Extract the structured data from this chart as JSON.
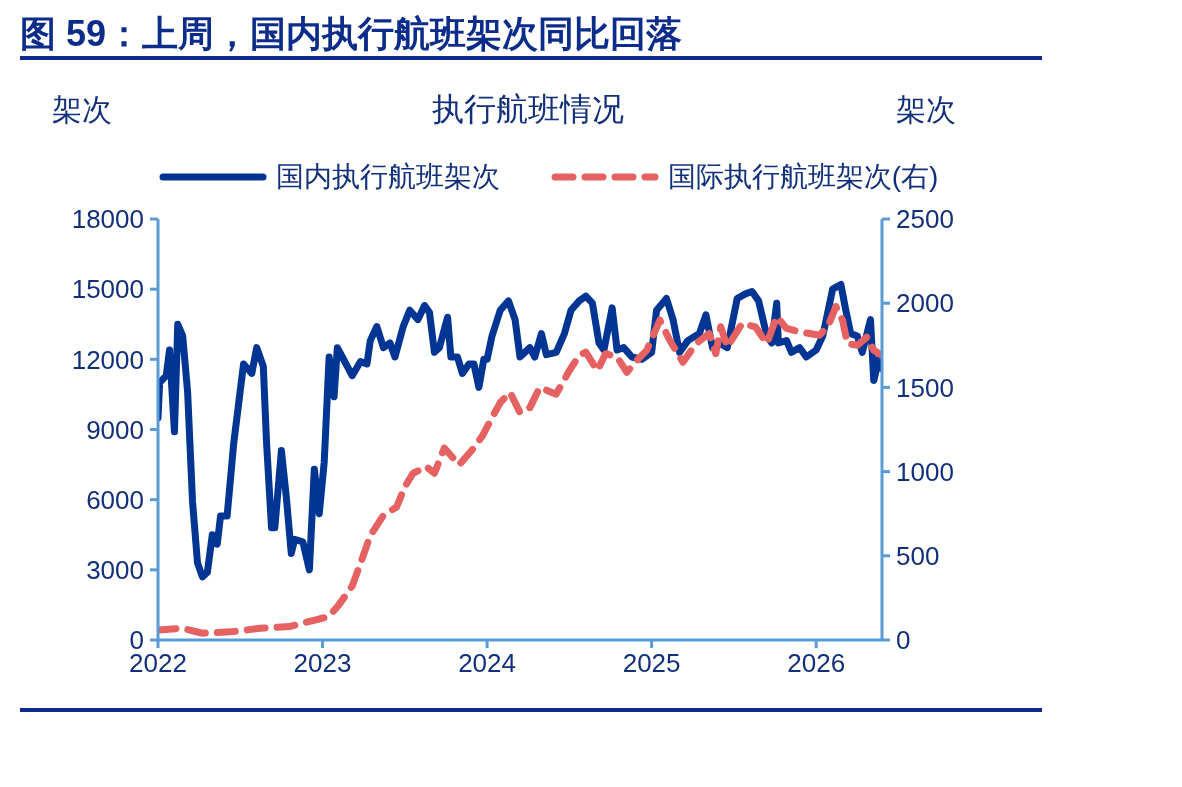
{
  "chart_data": {
    "type": "line",
    "title": "图 59：上周，国内执行航班架次同比回落",
    "subtitle": "执行航班情况",
    "ylabel": "架次",
    "y2label": "架次",
    "xlim": [
      2022,
      2026.4
    ],
    "xticks": [
      2022,
      2023,
      2024,
      2025,
      2026
    ],
    "ylim": [
      0,
      18000
    ],
    "yticks": [
      0,
      3000,
      6000,
      9000,
      12000,
      15000,
      18000
    ],
    "y2lim": [
      0,
      2500
    ],
    "y2ticks": [
      0,
      500,
      1000,
      1500,
      2000,
      2500
    ],
    "legend": "top",
    "marker": "none",
    "series": [
      {
        "name": "国内执行航班架次",
        "color": "#003594",
        "line_style": "solid",
        "x": [
          2022.0,
          2022.01,
          2022.05,
          2022.07,
          2022.1,
          2022.12,
          2022.15,
          2022.18,
          2022.21,
          2022.24,
          2022.27,
          2022.3,
          2022.33,
          2022.36,
          2022.38,
          2022.42,
          2022.46,
          2022.49,
          2022.52,
          2022.57,
          2022.6,
          2022.64,
          2022.66,
          2022.69,
          2022.71,
          2022.75,
          2022.78,
          2022.81,
          2022.83,
          2022.88,
          2022.92,
          2022.95,
          2022.98,
          2023.01,
          2023.04,
          2023.07,
          2023.09,
          2023.12,
          2023.18,
          2023.23,
          2023.27,
          2023.29,
          2023.33,
          2023.37,
          2023.41,
          2023.44,
          2023.49,
          2023.53,
          2023.58,
          2023.62,
          2023.65,
          2023.68,
          2023.71,
          2023.76,
          2023.78,
          2023.82,
          2023.85,
          2023.89,
          2023.92,
          2023.95,
          2023.98,
          2024.0,
          2024.03,
          2024.08,
          2024.13,
          2024.17,
          2024.2,
          2024.26,
          2024.29,
          2024.33,
          2024.36,
          2024.42,
          2024.47,
          2024.51,
          2024.56,
          2024.6,
          2024.64,
          2024.68,
          2024.71,
          2024.76,
          2024.79,
          2024.83,
          2024.88,
          2024.94,
          2025.0,
          2025.03,
          2025.09,
          2025.13,
          2025.17,
          2025.22,
          2025.29,
          2025.33,
          2025.37,
          2025.41,
          2025.46,
          2025.52,
          2025.57,
          2025.61,
          2025.65,
          2025.7,
          2025.73,
          2025.76,
          2025.77,
          2025.82,
          2025.85,
          2025.9,
          2025.94,
          2026.0,
          2026.04,
          2026.1,
          2026.15,
          2026.18,
          2026.21,
          2026.25,
          2026.28,
          2026.33,
          2026.35,
          2026.38,
          2026.4
        ],
        "values": [
          9500,
          11000,
          11300,
          12400,
          8900,
          13500,
          13000,
          10600,
          5900,
          3300,
          2700,
          2900,
          4500,
          4100,
          5300,
          5300,
          8400,
          10100,
          11800,
          11400,
          12500,
          11700,
          8400,
          4800,
          4800,
          8100,
          6100,
          3700,
          4300,
          4200,
          3000,
          7300,
          5400,
          7600,
          12100,
          10400,
          12500,
          12100,
          11300,
          11900,
          11800,
          12800,
          13400,
          12500,
          12700,
          12100,
          13400,
          14100,
          13700,
          14300,
          14000,
          12300,
          12500,
          13800,
          12100,
          12100,
          11400,
          11800,
          11800,
          10800,
          12000,
          12000,
          13000,
          14100,
          14500,
          13700,
          12100,
          12500,
          12100,
          13100,
          12200,
          12300,
          13100,
          14100,
          14500,
          14700,
          14400,
          12700,
          12400,
          14200,
          12400,
          12500,
          12100,
          12000,
          12300,
          14100,
          14600,
          13700,
          12300,
          12800,
          13100,
          13900,
          12500,
          12700,
          12500,
          14600,
          14800,
          14900,
          14500,
          13000,
          12700,
          14400,
          12700,
          12800,
          12300,
          12500,
          12100,
          12400,
          13000,
          15000,
          15200,
          14100,
          13100,
          13000,
          12300,
          13700,
          11100,
          12000,
          11600
        ]
      },
      {
        "name": "国际执行航班架次(右)",
        "color": "#e66161",
        "line_style": "dashed",
        "axis": "y2",
        "x": [
          2022.0,
          2022.15,
          2022.27,
          2022.46,
          2022.62,
          2022.8,
          2022.96,
          2023.04,
          2023.1,
          2023.18,
          2023.24,
          2023.29,
          2023.37,
          2023.45,
          2023.5,
          2023.55,
          2023.63,
          2023.68,
          2023.74,
          2023.83,
          2023.91,
          2023.97,
          2024.03,
          2024.08,
          2024.14,
          2024.2,
          2024.26,
          2024.32,
          2024.42,
          2024.5,
          2024.56,
          2024.6,
          2024.67,
          2024.72,
          2024.79,
          2024.85,
          2024.91,
          2024.97,
          2025.05,
          2025.11,
          2025.19,
          2025.27,
          2025.35,
          2025.39,
          2025.42,
          2025.46,
          2025.55,
          2025.63,
          2025.7,
          2025.76,
          2025.82,
          2025.9,
          2026.02,
          2026.07,
          2026.12,
          2026.16,
          2026.19,
          2026.25,
          2026.31,
          2026.35,
          2026.4
        ],
        "values": [
          60,
          70,
          40,
          50,
          70,
          80,
          120,
          140,
          210,
          320,
          480,
          620,
          740,
          790,
          910,
          990,
          1030,
          990,
          1140,
          1040,
          1130,
          1210,
          1320,
          1410,
          1470,
          1350,
          1380,
          1500,
          1460,
          1600,
          1690,
          1710,
          1600,
          1700,
          1680,
          1590,
          1660,
          1720,
          1900,
          1780,
          1650,
          1760,
          1820,
          1700,
          1860,
          1740,
          1880,
          1860,
          1760,
          1920,
          1850,
          1830,
          1810,
          1860,
          1980,
          1900,
          1760,
          1750,
          1800,
          1720,
          1690
        ]
      }
    ]
  }
}
